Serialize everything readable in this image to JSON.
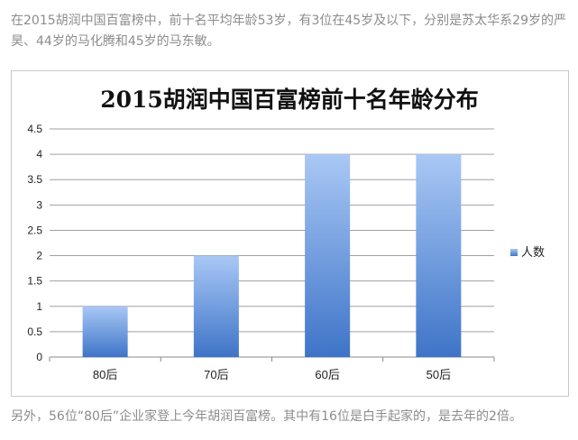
{
  "article": {
    "intro": "在2015胡润中国百富榜中，前十名平均年龄53岁，有3位在45岁及以下，分别是苏太华系29岁的严昊、44岁的马化腾和45岁的马东敏。",
    "outro": "另外，56位“80后”企业家登上今年胡润百富榜。其中有16位是白手起家的，是去年的2倍。"
  },
  "chart_data": {
    "type": "bar",
    "title": "2015胡润中国百富榜前十名年龄分布",
    "categories": [
      "80后",
      "70后",
      "60后",
      "50后"
    ],
    "series": [
      {
        "name": "人数",
        "values": [
          1,
          2,
          4,
          4
        ]
      }
    ],
    "yticks": [
      "0",
      "0.5",
      "1",
      "1.5",
      "2",
      "2.5",
      "3",
      "3.5",
      "4",
      "4.5"
    ],
    "ylim": [
      0,
      4.5
    ],
    "grid": true,
    "legend": "right",
    "colors": {
      "bar_top": "#a9c8f5",
      "bar_bottom": "#3e74c8",
      "grid": "#a0a0a0"
    }
  }
}
